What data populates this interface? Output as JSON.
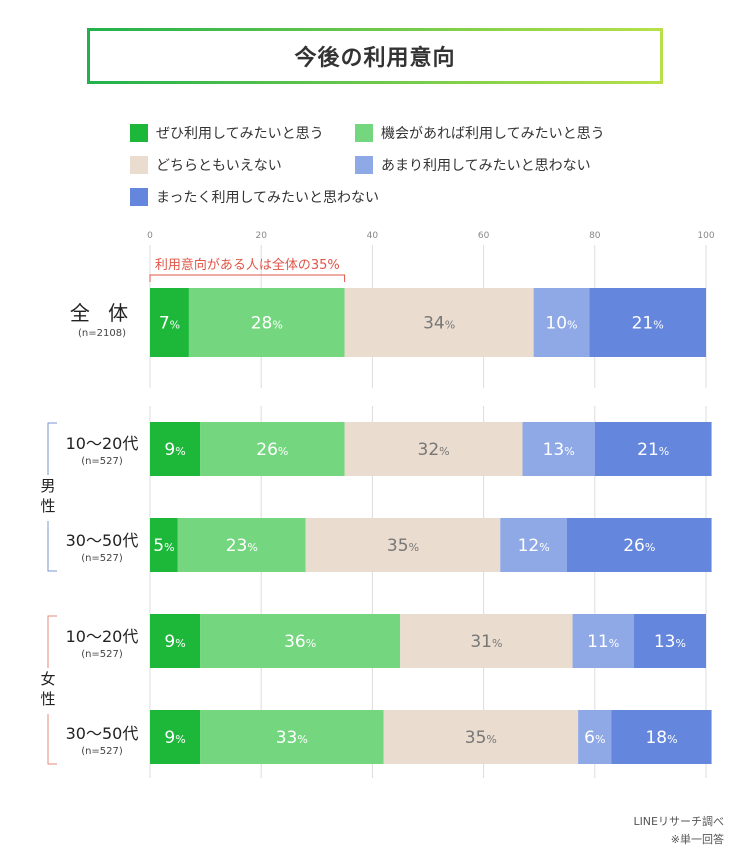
{
  "title": "今後の利用意向",
  "legend": [
    {
      "label": "ぜひ利用してみたいと思う",
      "color": "#1db83a"
    },
    {
      "label": "機会があれば利用してみたいと思う",
      "color": "#74d77f"
    },
    {
      "label": "どちらともいえない",
      "color": "#eadccf"
    },
    {
      "label": "あまり利用してみたいと思わない",
      "color": "#8fa8e6"
    },
    {
      "label": "まったく利用してみたいと思わない",
      "color": "#6486dd"
    }
  ],
  "annotation": "利用意向がある人は全体の35%",
  "rows": [
    {
      "label": "全 体",
      "n": "(n=2108)"
    },
    {
      "label": "10〜20代",
      "n": "(n=527)"
    },
    {
      "label": "30〜50代",
      "n": "(n=527)"
    },
    {
      "label": "10〜20代",
      "n": "(n=527)"
    },
    {
      "label": "30〜50代",
      "n": "(n=527)"
    }
  ],
  "groups": {
    "male": "男性",
    "female": "女性"
  },
  "footer": {
    "source": "LINEリサーチ調べ",
    "note": "※単一回答"
  },
  "chart_data": {
    "type": "bar",
    "orientation": "horizontal-stacked-100",
    "title": "今後の利用意向",
    "categories": [
      "全体",
      "男性 10〜20代",
      "男性 30〜50代",
      "女性 10〜20代",
      "女性 30〜50代"
    ],
    "xlim": [
      0,
      100
    ],
    "xticks": [
      "0",
      "20",
      "40",
      "60",
      "80",
      "100"
    ],
    "unit": "%",
    "series": [
      {
        "name": "ぜひ利用してみたいと思う",
        "values": [
          7,
          9,
          5,
          9,
          9
        ]
      },
      {
        "name": "機会があれば利用してみたいと思う",
        "values": [
          28,
          26,
          23,
          36,
          33
        ]
      },
      {
        "name": "どちらともいえない",
        "values": [
          34,
          32,
          35,
          31,
          35
        ]
      },
      {
        "name": "あまり利用してみたいと思わない",
        "values": [
          10,
          13,
          12,
          11,
          6
        ]
      },
      {
        "name": "まったく利用してみたいと思わない",
        "values": [
          21,
          21,
          26,
          13,
          18
        ]
      }
    ]
  }
}
